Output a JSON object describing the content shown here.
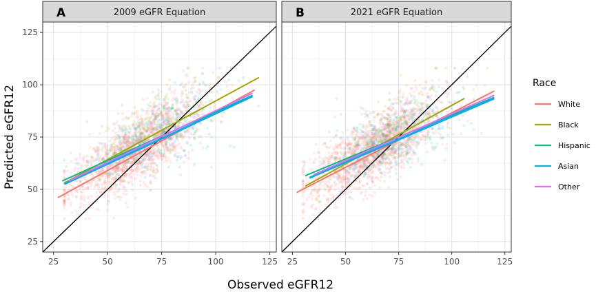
{
  "chart_data": {
    "type": "scatter",
    "xlabel": "Observed eGFR12",
    "ylabel": "Predicted eGFR12",
    "xlim": [
      20,
      128
    ],
    "ylim": [
      20,
      130
    ],
    "xticks": [
      25,
      50,
      75,
      100,
      125
    ],
    "yticks": [
      25,
      50,
      75,
      100,
      125
    ],
    "identity_line": true,
    "grid": true,
    "legend": {
      "title": "Race",
      "position": "right",
      "items": [
        {
          "name": "White",
          "color": "#F8766D"
        },
        {
          "name": "Black",
          "color": "#A3A500"
        },
        {
          "name": "Hispanic",
          "color": "#00BF7D"
        },
        {
          "name": "Asian",
          "color": "#00B0F6"
        },
        {
          "name": "Other",
          "color": "#E76BF3"
        }
      ]
    },
    "panels": [
      {
        "letter": "A",
        "title": "2009 eGFR Equation",
        "fit_lines": [
          {
            "name": "White",
            "x": [
              27,
              118
            ],
            "y": [
              46,
              97.5
            ]
          },
          {
            "name": "Black",
            "x": [
              30,
              120
            ],
            "y": [
              53,
              103.5
            ]
          },
          {
            "name": "Hispanic",
            "x": [
              29,
              117
            ],
            "y": [
              54,
              95
            ]
          },
          {
            "name": "Asian",
            "x": [
              30,
              117
            ],
            "y": [
              52.5,
              94.5
            ]
          },
          {
            "name": "Other",
            "x": [
              32,
              117
            ],
            "y": [
              54,
              96
            ]
          }
        ]
      },
      {
        "letter": "B",
        "title": "2021 eGFR Equation",
        "fit_lines": [
          {
            "name": "White",
            "x": [
              27,
              120
            ],
            "y": [
              48.5,
              97
            ]
          },
          {
            "name": "Black",
            "x": [
              31,
              106
            ],
            "y": [
              51.5,
              93.5
            ]
          },
          {
            "name": "Hispanic",
            "x": [
              31,
              120
            ],
            "y": [
              56.5,
              94
            ]
          },
          {
            "name": "Asian",
            "x": [
              33,
              120
            ],
            "y": [
              55.5,
              93.5
            ]
          },
          {
            "name": "Other",
            "x": [
              35,
              120
            ],
            "y": [
              57,
              95
            ]
          }
        ]
      }
    ]
  }
}
